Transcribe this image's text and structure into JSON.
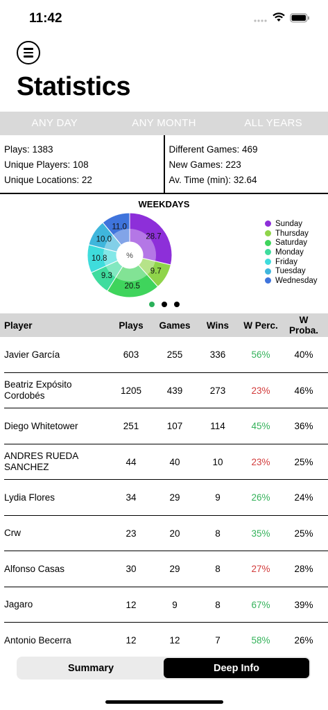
{
  "status_bar": {
    "time": "11:42"
  },
  "page_title": "Statistics",
  "filters": [
    "ANY DAY",
    "ANY MONTH",
    "ALL YEARS"
  ],
  "summary": {
    "left": [
      "Plays: 1383",
      "Unique Players: 108",
      "Unique Locations: 22"
    ],
    "right": [
      "Different Games: 469",
      "New Games: 223",
      "Av. Time (min): 32.64"
    ]
  },
  "chart_data": {
    "type": "pie",
    "title": "WEEKDAYS",
    "center_label": "%",
    "labels": [
      "Sunday",
      "Thursday",
      "Saturday",
      "Monday",
      "Friday",
      "Tuesday",
      "Wednesday"
    ],
    "values": [
      28.7,
      9.7,
      20.5,
      9.3,
      10.8,
      10.0,
      11.0
    ],
    "colors": [
      "#8d2fd9",
      "#8fd44a",
      "#3fd45c",
      "#3fdc9e",
      "#3fdcdc",
      "#3fb6dc",
      "#3f74dc"
    ],
    "legend_position": "right"
  },
  "table": {
    "headers": [
      "Player",
      "Plays",
      "Games",
      "Wins",
      "W Perc.",
      "W Proba."
    ],
    "rows": [
      {
        "player": "Javier García",
        "plays": "603",
        "games": "255",
        "wins": "336",
        "wperc": "56%",
        "wproba": "40%",
        "trend": "pos"
      },
      {
        "player": "Beatriz Expósito Cordobés",
        "plays": "1205",
        "games": "439",
        "wins": "273",
        "wperc": "23%",
        "wproba": "46%",
        "trend": "neg"
      },
      {
        "player": "Diego Whitetower",
        "plays": "251",
        "games": "107",
        "wins": "114",
        "wperc": "45%",
        "wproba": "36%",
        "trend": "pos"
      },
      {
        "player": "ANDRES RUEDA SANCHEZ",
        "plays": "44",
        "games": "40",
        "wins": "10",
        "wperc": "23%",
        "wproba": "25%",
        "trend": "neg"
      },
      {
        "player": "Lydia Flores",
        "plays": "34",
        "games": "29",
        "wins": "9",
        "wperc": "26%",
        "wproba": "24%",
        "trend": "pos"
      },
      {
        "player": "Crw",
        "plays": "23",
        "games": "20",
        "wins": "8",
        "wperc": "35%",
        "wproba": "25%",
        "trend": "pos"
      },
      {
        "player": "Alfonso Casas",
        "plays": "30",
        "games": "29",
        "wins": "8",
        "wperc": "27%",
        "wproba": "28%",
        "trend": "neg"
      },
      {
        "player": "Jagaro",
        "plays": "12",
        "games": "9",
        "wins": "8",
        "wperc": "67%",
        "wproba": "39%",
        "trend": "pos"
      },
      {
        "player": "Antonio Becerra",
        "plays": "12",
        "games": "12",
        "wins": "7",
        "wperc": "58%",
        "wproba": "26%",
        "trend": "pos"
      }
    ]
  },
  "tabs": [
    "Summary",
    "Deep Info"
  ],
  "active_tab": 1,
  "chart_page": {
    "total": 3,
    "current": 1
  }
}
